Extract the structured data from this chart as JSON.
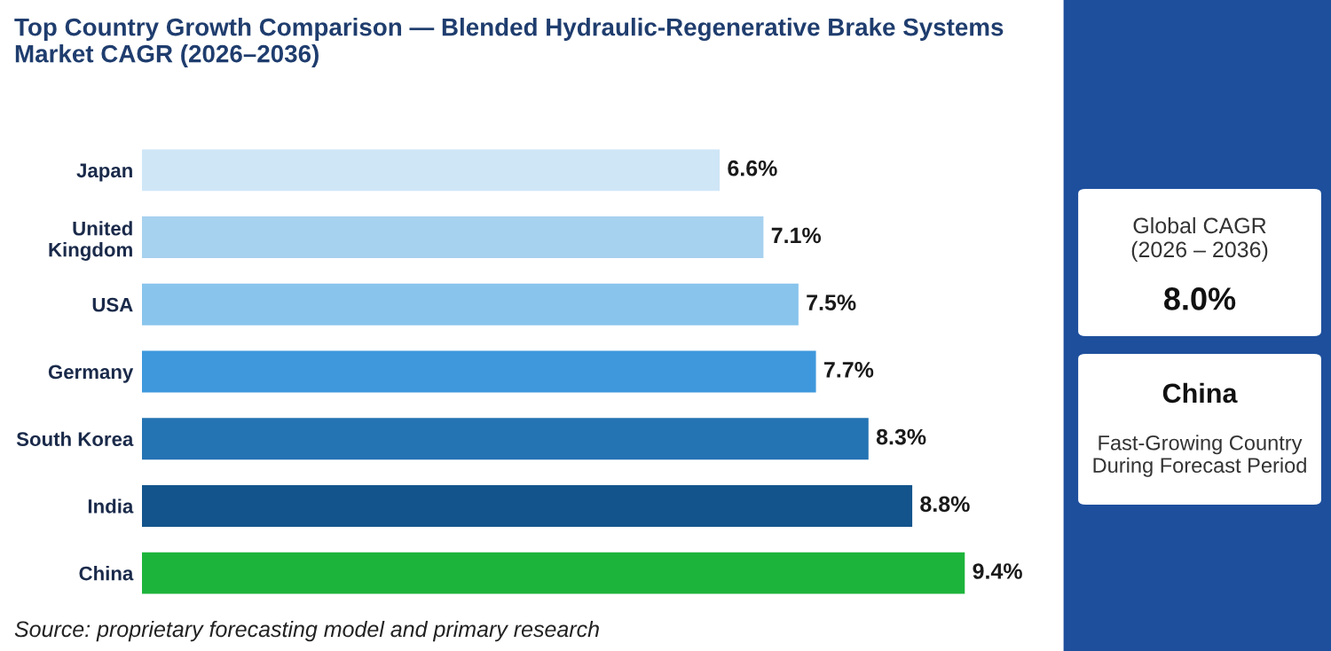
{
  "chart_data": {
    "type": "bar",
    "orientation": "horizontal",
    "title": "Top Country Growth Comparison — Blended Hydraulic-Regenerative Brake Systems\nMarket CAGR (2026–2036)",
    "categories": [
      "Japan",
      "United\nKingdom",
      "USA",
      "Germany",
      "South Korea",
      "India",
      "China"
    ],
    "values": [
      6.6,
      7.1,
      7.5,
      7.7,
      8.3,
      8.8,
      9.4
    ],
    "colors": [
      "#cfe6f6",
      "#a6d1ef",
      "#88c4ec",
      "#3f98dc",
      "#2473b3",
      "#13548c",
      "#1db43b"
    ],
    "value_labels": [
      "6.6%",
      "7.1%",
      "7.5%",
      "7.7%",
      "8.3%",
      "8.8%",
      "9.4%"
    ],
    "annotations": [
      "Source: proprietary forecasting model and primary research",
      "Global CAGR\n(2026 – 2036)",
      "8.0%",
      "China",
      "Fast-Growing Country\nDuring Forecast Period"
    ],
    "grid": false,
    "legend": false
  }
}
